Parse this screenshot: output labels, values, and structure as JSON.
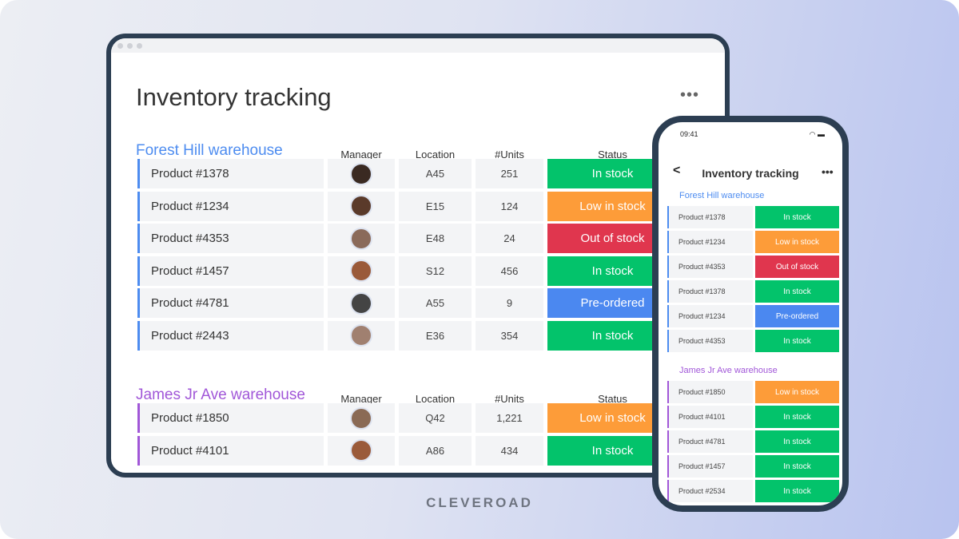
{
  "colors": {
    "in_stock": "#03c36b",
    "low": "#fd9c39",
    "out": "#e0364e",
    "pre": "#4b88f0",
    "group1": "#4d8cf0",
    "group2": "#a157d8"
  },
  "desktop": {
    "title": "Inventory tracking",
    "more_icon": "more-horizontal-icon",
    "columns": {
      "manager": "Manager",
      "location": "Location",
      "units": "#Units",
      "status": "Status"
    },
    "groups": [
      {
        "title": "Forest Hill warehouse",
        "color": "#4d8cf0",
        "rows": [
          {
            "product": "Product  #1378",
            "location": "A45",
            "units": "251",
            "status": "In stock",
            "status_key": "in_stock",
            "avatar": "#3a2a22"
          },
          {
            "product": "Product  #1234",
            "location": "E15",
            "units": "124",
            "status": "Low in stock",
            "status_key": "low",
            "avatar": "#5a3a2a"
          },
          {
            "product": "Product  #4353",
            "location": "E48",
            "units": "24",
            "status": "Out of stock",
            "status_key": "out",
            "avatar": "#8a6a5a"
          },
          {
            "product": "Product  #1457",
            "location": "S12",
            "units": "456",
            "status": "In stock",
            "status_key": "in_stock",
            "avatar": "#9a5a3a"
          },
          {
            "product": "Product  #4781",
            "location": "A55",
            "units": "9",
            "status": "Pre-ordered",
            "status_key": "pre",
            "avatar": "#444444"
          },
          {
            "product": "Product  #2443",
            "location": "E36",
            "units": "354",
            "status": "In stock",
            "status_key": "in_stock",
            "avatar": "#a08070"
          }
        ]
      },
      {
        "title": "James Jr Ave warehouse",
        "color": "#a157d8",
        "rows": [
          {
            "product": "Product  #1850",
            "location": "Q42",
            "units": "1,221",
            "status": "Low in stock",
            "status_key": "low",
            "avatar": "#8a6a55"
          },
          {
            "product": "Product  #4101",
            "location": "A86",
            "units": "434",
            "status": "In stock",
            "status_key": "in_stock",
            "avatar": "#9a5a3a"
          }
        ]
      }
    ]
  },
  "mobile": {
    "time": "09:41",
    "back_icon": "chevron-left-icon",
    "title": "Inventory tracking",
    "groups": [
      {
        "title": "Forest Hill warehouse",
        "color": "#4d8cf0",
        "rows": [
          {
            "product": "Product #1378",
            "status": "In stock",
            "status_key": "in_stock"
          },
          {
            "product": "Product  #1234",
            "status": "Low in stock",
            "status_key": "low"
          },
          {
            "product": "Product  #4353",
            "status": "Out of stock",
            "status_key": "out"
          },
          {
            "product": "Product #1378",
            "status": "In stock",
            "status_key": "in_stock"
          },
          {
            "product": "Product  #1234",
            "status": "Pre-ordered",
            "status_key": "pre"
          },
          {
            "product": "Product  #4353",
            "status": "In stock",
            "status_key": "in_stock"
          }
        ]
      },
      {
        "title": "James Jr Ave warehouse",
        "color": "#a157d8",
        "rows": [
          {
            "product": "Product #1850",
            "status": "Low in stock",
            "status_key": "low"
          },
          {
            "product": "Product #4101",
            "status": "In stock",
            "status_key": "in_stock"
          },
          {
            "product": "Product #4781",
            "status": "In stock",
            "status_key": "in_stock"
          },
          {
            "product": "Product #1457",
            "status": "In stock",
            "status_key": "in_stock"
          },
          {
            "product": "Product #2534",
            "status": "In stock",
            "status_key": "in_stock"
          }
        ]
      }
    ]
  },
  "brand": "CLEVEROAD"
}
